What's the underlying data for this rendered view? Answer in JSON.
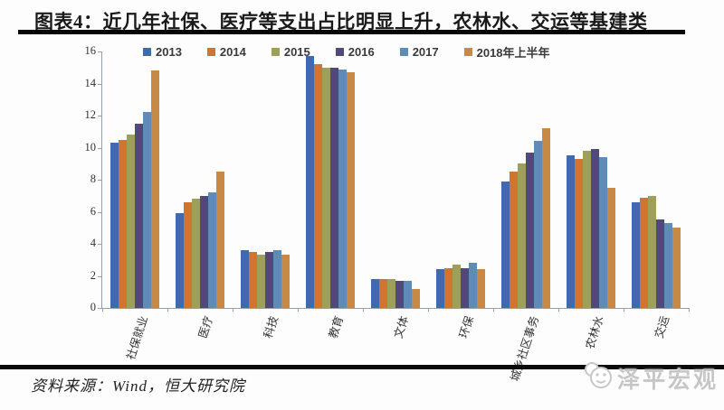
{
  "page": {
    "title": "图表4：近几年社保、医疗等支出占比明显上升，农林水、交运等基建类",
    "source_note": "资料来源：Wind，恒大研究院",
    "brand": "泽平宏观"
  },
  "chart_data": {
    "type": "bar",
    "title": "",
    "xlabel": "",
    "ylabel": "",
    "categories": [
      "社保就业",
      "医疗",
      "科技",
      "教育",
      "文体",
      "环保",
      "城乡社区事务",
      "农林水",
      "交运"
    ],
    "series": [
      {
        "name": "2013",
        "color": "#3e6bb0",
        "values": [
          10.3,
          5.9,
          3.6,
          15.7,
          1.8,
          2.4,
          7.9,
          9.5,
          6.6
        ]
      },
      {
        "name": "2014",
        "color": "#d0752d",
        "values": [
          10.5,
          6.6,
          3.5,
          15.2,
          1.8,
          2.5,
          8.5,
          9.3,
          6.9
        ]
      },
      {
        "name": "2015",
        "color": "#9e9f5a",
        "values": [
          10.8,
          6.8,
          3.3,
          15.0,
          1.8,
          2.7,
          9.0,
          9.8,
          7.0
        ]
      },
      {
        "name": "2016",
        "color": "#4f4a7b",
        "values": [
          11.5,
          7.0,
          3.5,
          15.0,
          1.7,
          2.5,
          9.7,
          9.9,
          5.5
        ]
      },
      {
        "name": "2017",
        "color": "#5d8db6",
        "values": [
          12.2,
          7.2,
          3.6,
          14.9,
          1.7,
          2.8,
          10.4,
          9.4,
          5.3
        ]
      },
      {
        "name": "2018年上半年",
        "color": "#c78946",
        "values": [
          14.8,
          8.5,
          3.3,
          14.7,
          1.2,
          2.4,
          11.2,
          7.5,
          5.0
        ]
      }
    ],
    "ylim": [
      0,
      16
    ],
    "yticks": [
      0,
      2,
      4,
      6,
      8,
      10,
      12,
      14,
      16
    ],
    "grid": false,
    "legend_position": "top"
  }
}
